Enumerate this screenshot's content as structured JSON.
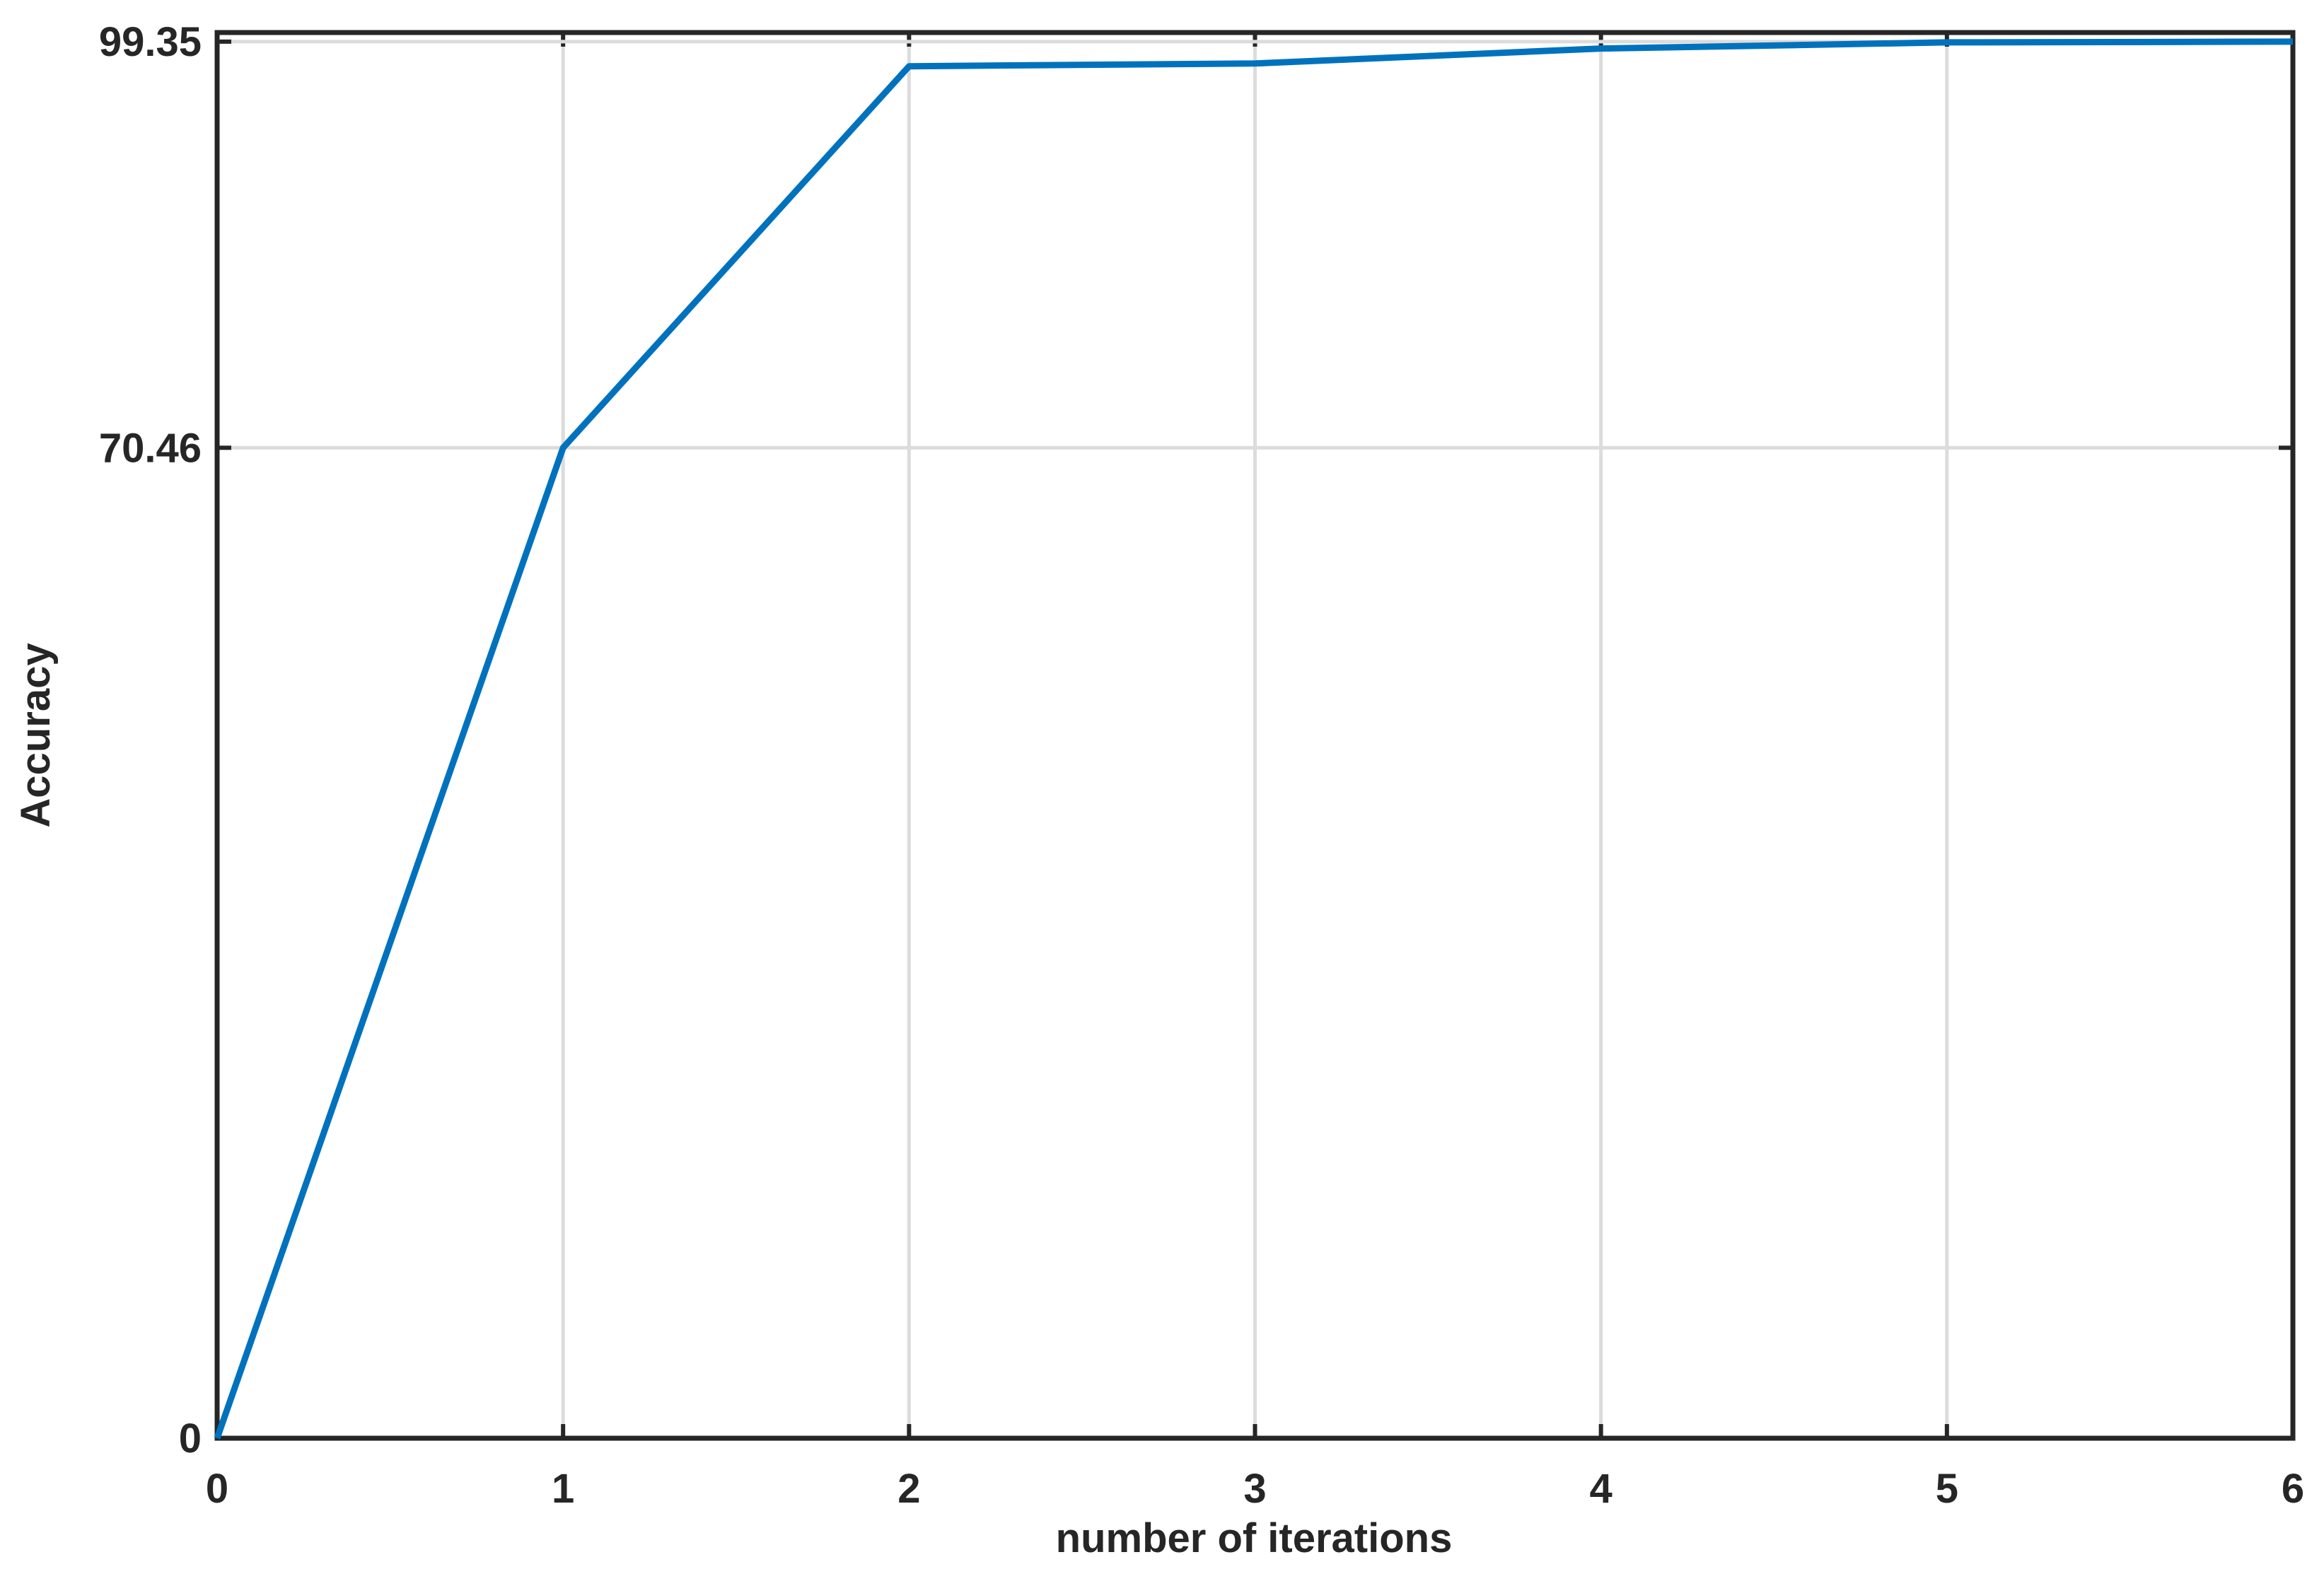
{
  "chart_data": {
    "type": "line",
    "x_label": "number of iterations",
    "y_label": "Accuracy",
    "x": [
      0,
      1,
      2,
      3,
      4,
      5,
      6
    ],
    "series": [
      {
        "color": "#0072bd",
        "values": [
          0,
          70.46,
          97.6,
          97.8,
          98.86,
          99.3,
          99.35
        ]
      }
    ],
    "xlim": [
      0,
      6
    ],
    "xticks": [
      0,
      1,
      2,
      3,
      4,
      5,
      6
    ],
    "ylim": [
      0,
      100
    ],
    "yticks": [
      0,
      70.46,
      99.35
    ],
    "grid": true
  }
}
